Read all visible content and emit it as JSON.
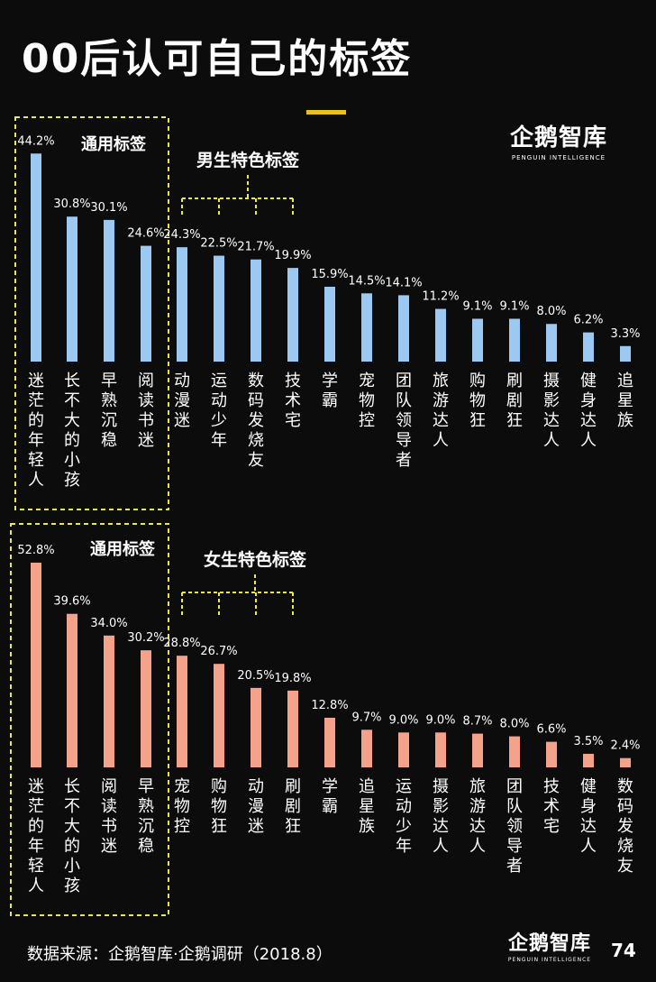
{
  "title": "00后认可自己的标签",
  "logo": {
    "name": "企鹅智库",
    "tagline": "PENGUIN INTELLIGENCE"
  },
  "source": "数据来源：企鹅智库·企鹅调研（2018.8）",
  "page_number": "74",
  "colors": {
    "male_bar": "#9cc9f2",
    "female_bar": "#f4a38a",
    "highlight": "#ecec3c",
    "accent": "#e8c21a"
  },
  "chart_data": [
    {
      "type": "bar",
      "id": "male",
      "common_group_label": "通用标签",
      "feature_group_label": "男生特色标签",
      "categories": [
        "迷茫的年轻人",
        "长不大的小孩",
        "早熟沉稳",
        "阅读书迷",
        "动漫迷",
        "运动少年",
        "数码发烧友",
        "技术宅",
        "学霸",
        "宠物控",
        "团队领导者",
        "旅游达人",
        "购物狂",
        "刷剧狂",
        "摄影达人",
        "健身达人",
        "追星族"
      ],
      "values": [
        44.2,
        30.8,
        30.1,
        24.6,
        24.3,
        22.5,
        21.7,
        19.9,
        15.9,
        14.5,
        14.1,
        11.2,
        9.1,
        9.1,
        8.0,
        6.2,
        3.3
      ],
      "labels": [
        "44.2%",
        "30.8%",
        "30.1%",
        "24.6%",
        "24.3%",
        "22.5%",
        "21.7%",
        "19.9%",
        "15.9%",
        "14.5%",
        "14.1%",
        "11.2%",
        "9.1%",
        "9.1%",
        "8.0%",
        "6.2%",
        "3.3%"
      ],
      "common_count": 4,
      "highlighted": [
        4,
        5,
        6,
        7
      ]
    },
    {
      "type": "bar",
      "id": "female",
      "common_group_label": "通用标签",
      "feature_group_label": "女生特色标签",
      "categories": [
        "迷茫的年轻人",
        "长不大的小孩",
        "阅读书迷",
        "早熟沉稳",
        "宠物控",
        "购物狂",
        "动漫迷",
        "刷剧狂",
        "学霸",
        "追星族",
        "运动少年",
        "摄影达人",
        "旅游达人",
        "团队领导者",
        "技术宅",
        "健身达人",
        "数码发烧友"
      ],
      "values": [
        52.8,
        39.6,
        34.0,
        30.2,
        28.8,
        26.7,
        20.5,
        19.8,
        12.8,
        9.7,
        9.0,
        9.0,
        8.7,
        8.0,
        6.6,
        3.5,
        2.4
      ],
      "labels": [
        "52.8%",
        "39.6%",
        "34.0%",
        "30.2%",
        "28.8%",
        "26.7%",
        "20.5%",
        "19.8%",
        "12.8%",
        "9.7%",
        "9.0%",
        "9.0%",
        "8.7%",
        "8.0%",
        "6.6%",
        "3.5%",
        "2.4%"
      ],
      "common_count": 4,
      "highlighted": [
        4,
        5,
        6,
        7
      ]
    }
  ]
}
